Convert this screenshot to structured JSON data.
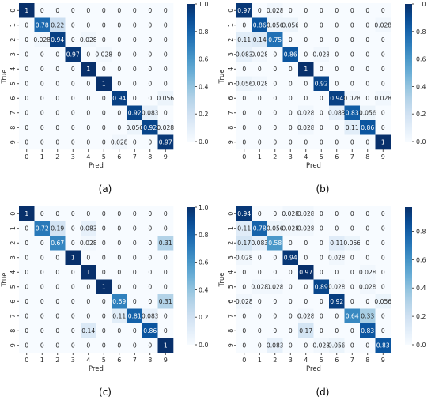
{
  "colorscale": {
    "low": "#f7fbff",
    "high": "#08306b",
    "dark_text_color": "#262626",
    "light_text_color": "#ffffff"
  },
  "chart_data": [
    {
      "type": "heatmap",
      "caption": "(a)",
      "xlabel": "Pred",
      "ylabel": "True",
      "x_tick_labels": [
        "0",
        "1",
        "2",
        "3",
        "4",
        "5",
        "6",
        "7",
        "8",
        "9"
      ],
      "y_tick_labels": [
        "0",
        "1",
        "2",
        "3",
        "4",
        "5",
        "6",
        "7",
        "8",
        "9"
      ],
      "vmin": 0,
      "vmax": 1,
      "colorbar_ticks": [
        "0.0",
        "0.2",
        "0.4",
        "0.6",
        "0.8",
        "1.0"
      ],
      "matrix": [
        [
          1,
          0,
          0,
          0,
          0,
          0,
          0,
          0,
          0,
          0
        ],
        [
          0,
          0.78,
          0.22,
          0,
          0,
          0,
          0,
          0,
          0,
          0
        ],
        [
          0,
          0.028,
          0.94,
          0,
          0.028,
          0,
          0,
          0,
          0,
          0
        ],
        [
          0,
          0,
          0,
          0.97,
          0,
          0.028,
          0,
          0,
          0,
          0
        ],
        [
          0,
          0,
          0,
          0,
          1,
          0,
          0,
          0,
          0,
          0
        ],
        [
          0,
          0,
          0,
          0,
          0,
          1,
          0,
          0,
          0,
          0
        ],
        [
          0,
          0,
          0,
          0,
          0,
          0,
          0.94,
          0,
          0,
          0.056
        ],
        [
          0,
          0,
          0,
          0,
          0,
          0,
          0,
          0.92,
          0.083,
          0
        ],
        [
          0,
          0,
          0,
          0,
          0,
          0,
          0,
          0.056,
          0.92,
          0.028
        ],
        [
          0,
          0,
          0,
          0,
          0,
          0,
          0.028,
          0,
          0,
          0.97
        ]
      ],
      "cell_labels": [
        [
          "1",
          "0",
          "0",
          "0",
          "0",
          "0",
          "0",
          "0",
          "0",
          "0"
        ],
        [
          "0",
          "0.78",
          "0.22",
          "0",
          "0",
          "0",
          "0",
          "0",
          "0",
          "0"
        ],
        [
          "0",
          "0.028",
          "0.94",
          "0",
          "0.028",
          "0",
          "0",
          "0",
          "0",
          "0"
        ],
        [
          "0",
          "0",
          "0",
          "0.97",
          "0",
          "0.028",
          "0",
          "0",
          "0",
          "0"
        ],
        [
          "0",
          "0",
          "0",
          "0",
          "1",
          "0",
          "0",
          "0",
          "0",
          "0"
        ],
        [
          "0",
          "0",
          "0",
          "0",
          "0",
          "1",
          "0",
          "0",
          "0",
          "0"
        ],
        [
          "0",
          "0",
          "0",
          "0",
          "0",
          "0",
          "0.94",
          "0",
          "0",
          "0.056"
        ],
        [
          "0",
          "0",
          "0",
          "0",
          "0",
          "0",
          "0",
          "0.92",
          "0.083",
          "0"
        ],
        [
          "0",
          "0",
          "0",
          "0",
          "0",
          "0",
          "0",
          "0.056",
          "0.92",
          "0.028"
        ],
        [
          "0",
          "0",
          "0",
          "0",
          "0",
          "0",
          "0.028",
          "0",
          "0",
          "0.97"
        ]
      ]
    },
    {
      "type": "heatmap",
      "caption": "(b)",
      "xlabel": "Pred",
      "ylabel": "True",
      "x_tick_labels": [
        "0",
        "1",
        "2",
        "3",
        "4",
        "5",
        "6",
        "7",
        "8",
        "9"
      ],
      "y_tick_labels": [
        "0",
        "1",
        "2",
        "3",
        "4",
        "5",
        "6",
        "7",
        "8",
        "9"
      ],
      "vmin": 0,
      "vmax": 1,
      "colorbar_ticks": [
        "0.0",
        "0.2",
        "0.4",
        "0.6",
        "0.8",
        "1.0"
      ],
      "matrix": [
        [
          0.97,
          0,
          0.028,
          0,
          0,
          0,
          0,
          0,
          0,
          0
        ],
        [
          0,
          0.86,
          0.056,
          0.056,
          0,
          0,
          0,
          0,
          0,
          0.028
        ],
        [
          0.11,
          0.14,
          0.75,
          0,
          0,
          0,
          0,
          0,
          0,
          0
        ],
        [
          0.083,
          0.028,
          0,
          0.86,
          0,
          0.028,
          0,
          0,
          0,
          0
        ],
        [
          0,
          0,
          0,
          0,
          1,
          0,
          0,
          0,
          0,
          0
        ],
        [
          0.056,
          0.028,
          0,
          0,
          0,
          0.92,
          0,
          0,
          0,
          0
        ],
        [
          0,
          0,
          0,
          0,
          0,
          0,
          0.94,
          0.028,
          0,
          0.028
        ],
        [
          0,
          0,
          0,
          0,
          0.028,
          0,
          0.083,
          0.83,
          0.056,
          0
        ],
        [
          0,
          0,
          0,
          0,
          0.028,
          0,
          0,
          0.11,
          0.86,
          0
        ],
        [
          0,
          0,
          0,
          0,
          0,
          0,
          0,
          0,
          0,
          1
        ]
      ],
      "cell_labels": [
        [
          "0.97",
          "0",
          "0.028",
          "0",
          "0",
          "0",
          "0",
          "0",
          "0",
          "0"
        ],
        [
          "0",
          "0.86",
          "0.056",
          "0.056",
          "0",
          "0",
          "0",
          "0",
          "0",
          "0.028"
        ],
        [
          "0.11",
          "0.14",
          "0.75",
          "0",
          "0",
          "0",
          "0",
          "0",
          "0",
          "0"
        ],
        [
          "0.083",
          "0.028",
          "0",
          "0.86",
          "0",
          "0.028",
          "0",
          "0",
          "0",
          "0"
        ],
        [
          "0",
          "0",
          "0",
          "0",
          "1",
          "0",
          "0",
          "0",
          "0",
          "0"
        ],
        [
          "0.056",
          "0.028",
          "0",
          "0",
          "0",
          "0.92",
          "0",
          "0",
          "0",
          "0"
        ],
        [
          "0",
          "0",
          "0",
          "0",
          "0",
          "0",
          "0.94",
          "0.028",
          "0",
          "0.028"
        ],
        [
          "0",
          "0",
          "0",
          "0",
          "0.028",
          "0",
          "0.083",
          "0.83",
          "0.056",
          "0"
        ],
        [
          "0",
          "0",
          "0",
          "0",
          "0.028",
          "0",
          "0",
          "0.11",
          "0.86",
          "0"
        ],
        [
          "0",
          "0",
          "0",
          "0",
          "0",
          "0",
          "0",
          "0",
          "0",
          "1"
        ]
      ]
    },
    {
      "type": "heatmap",
      "caption": "(c)",
      "xlabel": "Pred",
      "ylabel": "True",
      "x_tick_labels": [
        "0",
        "1",
        "2",
        "3",
        "4",
        "5",
        "6",
        "7",
        "8",
        "9"
      ],
      "y_tick_labels": [
        "0",
        "1",
        "2",
        "3",
        "4",
        "5",
        "6",
        "7",
        "8",
        "9"
      ],
      "vmin": 0,
      "vmax": 1,
      "colorbar_ticks": [
        "0.0",
        "0.2",
        "0.4",
        "0.6",
        "0.8",
        "1.0"
      ],
      "matrix": [
        [
          1,
          0,
          0,
          0,
          0,
          0,
          0,
          0,
          0,
          0
        ],
        [
          0,
          0.72,
          0.19,
          0,
          0.083,
          0,
          0,
          0,
          0,
          0
        ],
        [
          0,
          0,
          0.67,
          0,
          0.028,
          0,
          0,
          0,
          0,
          0.31
        ],
        [
          0,
          0,
          0,
          1,
          0,
          0,
          0,
          0,
          0,
          0
        ],
        [
          0,
          0,
          0,
          0,
          1,
          0,
          0,
          0,
          0,
          0
        ],
        [
          0,
          0,
          0,
          0,
          0,
          1,
          0,
          0,
          0,
          0
        ],
        [
          0,
          0,
          0,
          0,
          0,
          0,
          0.69,
          0,
          0,
          0.31
        ],
        [
          0,
          0,
          0,
          0,
          0,
          0,
          0.11,
          0.81,
          0.083,
          0
        ],
        [
          0,
          0,
          0,
          0,
          0.14,
          0,
          0,
          0,
          0.86,
          0
        ],
        [
          0,
          0,
          0,
          0,
          0,
          0,
          0,
          0,
          0,
          1
        ]
      ],
      "cell_labels": [
        [
          "1",
          "0",
          "0",
          "0",
          "0",
          "0",
          "0",
          "0",
          "0",
          "0"
        ],
        [
          "0",
          "0.72",
          "0.19",
          "0",
          "0.083",
          "0",
          "0",
          "0",
          "0",
          "0"
        ],
        [
          "0",
          "0",
          "0.67",
          "0",
          "0.028",
          "0",
          "0",
          "0",
          "0",
          "0.31"
        ],
        [
          "0",
          "0",
          "0",
          "1",
          "0",
          "0",
          "0",
          "0",
          "0",
          "0"
        ],
        [
          "0",
          "0",
          "0",
          "0",
          "1",
          "0",
          "0",
          "0",
          "0",
          "0"
        ],
        [
          "0",
          "0",
          "0",
          "0",
          "0",
          "1",
          "0",
          "0",
          "0",
          "0"
        ],
        [
          "0",
          "0",
          "0",
          "0",
          "0",
          "0",
          "0.69",
          "0",
          "0",
          "0.31"
        ],
        [
          "0",
          "0",
          "0",
          "0",
          "0",
          "0",
          "0.11",
          "0.81",
          "0.083",
          "0"
        ],
        [
          "0",
          "0",
          "0",
          "0",
          "0.14",
          "0",
          "0",
          "0",
          "0.86",
          "0"
        ],
        [
          "0",
          "0",
          "0",
          "0",
          "0",
          "0",
          "0",
          "0",
          "0",
          "1"
        ]
      ]
    },
    {
      "type": "heatmap",
      "caption": "(d)",
      "xlabel": "Pred",
      "ylabel": "True",
      "x_tick_labels": [
        "0",
        "1",
        "2",
        "3",
        "4",
        "5",
        "6",
        "7",
        "8",
        "9"
      ],
      "y_tick_labels": [
        "0",
        "1",
        "2",
        "3",
        "4",
        "5",
        "6",
        "7",
        "8",
        "9"
      ],
      "vmin": 0,
      "vmax": 0.97,
      "colorbar_ticks": [
        "0.0",
        "0.2",
        "0.4",
        "0.6",
        "0.8"
      ],
      "matrix": [
        [
          0.94,
          0,
          0,
          0.028,
          0.028,
          0,
          0,
          0,
          0,
          0
        ],
        [
          0.11,
          0.78,
          0.056,
          0.028,
          0.028,
          0,
          0,
          0,
          0,
          0
        ],
        [
          0.17,
          0.083,
          0.58,
          0,
          0,
          0,
          0.11,
          0.056,
          0,
          0
        ],
        [
          0.028,
          0,
          0,
          0.94,
          0,
          0,
          0.028,
          0,
          0,
          0
        ],
        [
          0,
          0,
          0,
          0,
          0.97,
          0,
          0,
          0,
          0.028,
          0
        ],
        [
          0,
          0.028,
          0.028,
          0,
          0,
          0.89,
          0.028,
          0,
          0.028,
          0
        ],
        [
          0.028,
          0,
          0,
          0,
          0,
          0,
          0.92,
          0,
          0,
          0.056
        ],
        [
          0,
          0,
          0,
          0,
          0.028,
          0,
          0,
          0.64,
          0.33,
          0
        ],
        [
          0,
          0,
          0,
          0,
          0.17,
          0,
          0,
          0,
          0.83,
          0
        ],
        [
          0,
          0,
          0.083,
          0,
          0,
          0.028,
          0.056,
          0,
          0,
          0.83
        ]
      ],
      "cell_labels": [
        [
          "0.94",
          "0",
          "0",
          "0.028",
          "0.028",
          "0",
          "0",
          "0",
          "0",
          "0"
        ],
        [
          "0.11",
          "0.78",
          "0.056",
          "0.028",
          "0.028",
          "0",
          "0",
          "0",
          "0",
          "0"
        ],
        [
          "0.17",
          "0.083",
          "0.58",
          "0",
          "0",
          "0",
          "0.11",
          "0.056",
          "0",
          "0"
        ],
        [
          "0.028",
          "0",
          "0",
          "0.94",
          "0",
          "0",
          "0.028",
          "0",
          "0",
          "0"
        ],
        [
          "0",
          "0",
          "0",
          "0",
          "0.97",
          "0",
          "0",
          "0",
          "0.028",
          "0"
        ],
        [
          "0",
          "0.028",
          "0.028",
          "0",
          "0",
          "0.89",
          "0.028",
          "0",
          "0.028",
          "0"
        ],
        [
          "0.028",
          "0",
          "0",
          "0",
          "0",
          "0",
          "0.92",
          "0",
          "0",
          "0.056"
        ],
        [
          "0",
          "0",
          "0",
          "0",
          "0.028",
          "0",
          "0",
          "0.64",
          "0.33",
          "0"
        ],
        [
          "0",
          "0",
          "0",
          "0",
          "0.17",
          "0",
          "0",
          "0",
          "0.83",
          "0"
        ],
        [
          "0",
          "0",
          "0.083",
          "0",
          "0",
          "0.028",
          "0.056",
          "0",
          "0",
          "0.83"
        ]
      ]
    }
  ]
}
